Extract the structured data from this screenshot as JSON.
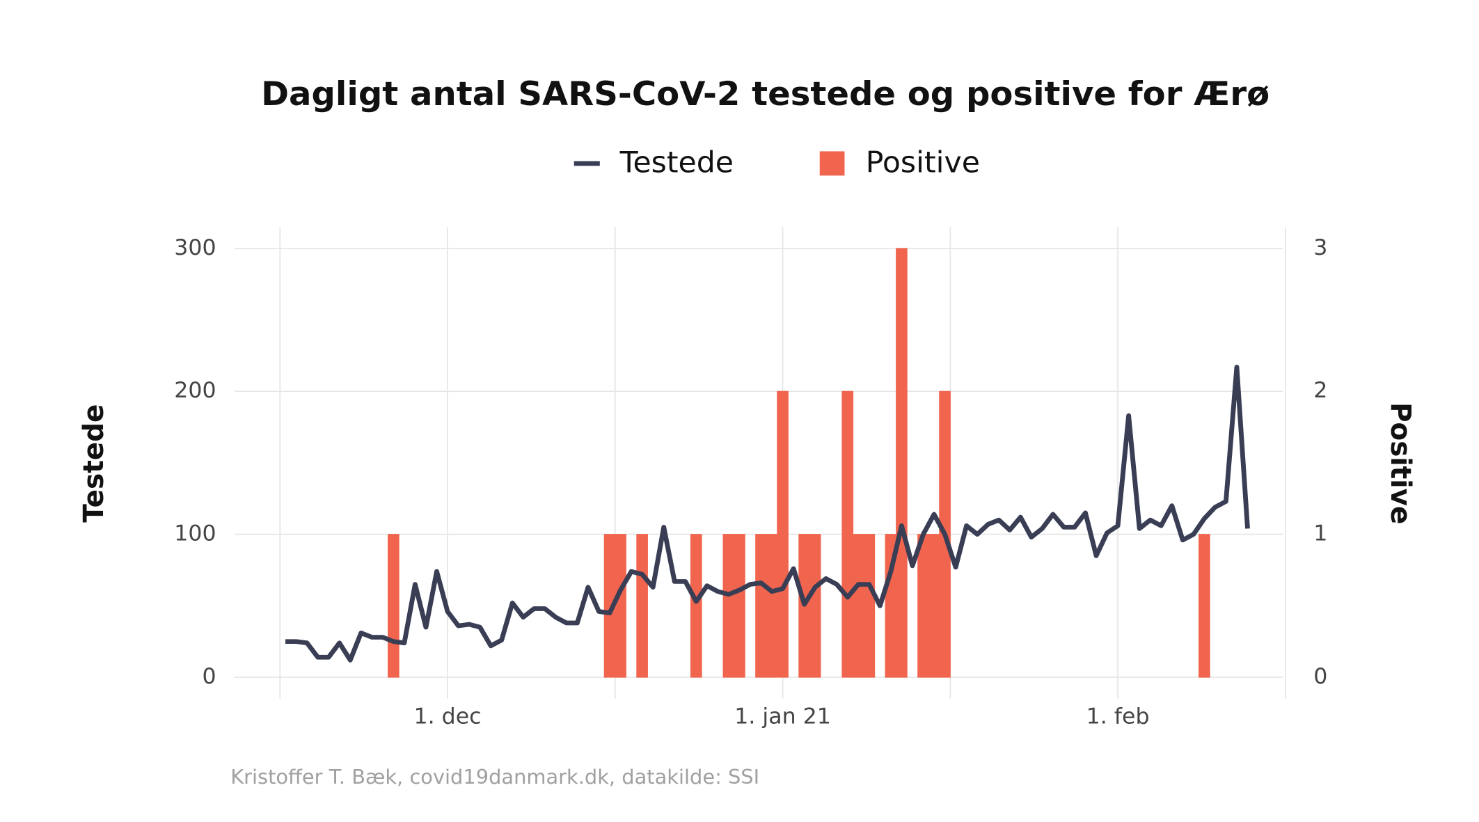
{
  "chart_data": {
    "type": "combo",
    "title": "Dagligt antal SARS-CoV-2 testede og positive for Ærø",
    "y_label": "Testede",
    "y2_label": "Positive",
    "caption": "Kristoffer T. Bæk, covid19danmark.dk, datakilde: SSI",
    "x_start": "2020-11-16",
    "x_count": 90,
    "xlim": [
      "2020-11-15",
      "2021-02-16"
    ],
    "xticks": [
      {
        "value": "2020-12-01",
        "label": "1. dec"
      },
      {
        "value": "2021-01-01",
        "label": "1. jan 21"
      },
      {
        "value": "2021-02-01",
        "label": "1. feb"
      }
    ],
    "ylim": [
      -15,
      315
    ],
    "yticks": [
      0,
      100,
      200,
      300
    ],
    "y2lim": [
      -0.15,
      3.15
    ],
    "y2ticks": [
      0,
      1,
      2,
      3
    ],
    "grid": true,
    "legend": "top",
    "series": [
      {
        "name": "Testede",
        "type": "line",
        "color": "#3a3e55",
        "values": [
          25,
          25,
          24,
          14,
          14,
          24,
          12,
          31,
          28,
          28,
          25,
          24,
          65,
          35,
          74,
          46,
          36,
          37,
          35,
          22,
          26,
          52,
          42,
          48,
          48,
          42,
          38,
          38,
          63,
          46,
          45,
          61,
          74,
          72,
          63,
          105,
          67,
          67,
          53,
          64,
          60,
          58,
          61,
          65,
          66,
          60,
          62,
          76,
          51,
          63,
          69,
          65,
          56,
          65,
          65,
          50,
          74,
          106,
          78,
          100,
          114,
          100,
          77,
          106,
          100,
          107,
          110,
          103,
          112,
          98,
          104,
          114,
          105,
          105,
          115,
          85,
          101,
          106,
          183,
          104,
          110,
          106,
          120,
          96,
          100,
          111,
          119,
          123,
          217,
          104
        ]
      },
      {
        "name": "Positive",
        "type": "bar",
        "axis": "y2",
        "color": "#f1654f",
        "values": [
          0,
          0,
          0,
          0,
          0,
          0,
          0,
          0,
          0,
          0,
          1,
          0,
          0,
          0,
          0,
          0,
          0,
          0,
          0,
          0,
          0,
          0,
          0,
          0,
          0,
          0,
          0,
          0,
          0,
          0,
          1,
          1,
          0,
          1,
          0,
          0,
          0,
          0,
          1,
          0,
          0,
          1,
          1,
          0,
          1,
          1,
          2,
          0,
          1,
          1,
          0,
          0,
          2,
          1,
          1,
          0,
          1,
          3,
          0,
          1,
          1,
          2,
          0,
          0,
          0,
          0,
          0,
          0,
          0,
          0,
          0,
          0,
          0,
          0,
          0,
          0,
          0,
          0,
          0,
          0,
          0,
          0,
          0,
          0,
          0,
          1,
          0,
          0,
          0,
          0
        ]
      }
    ]
  }
}
